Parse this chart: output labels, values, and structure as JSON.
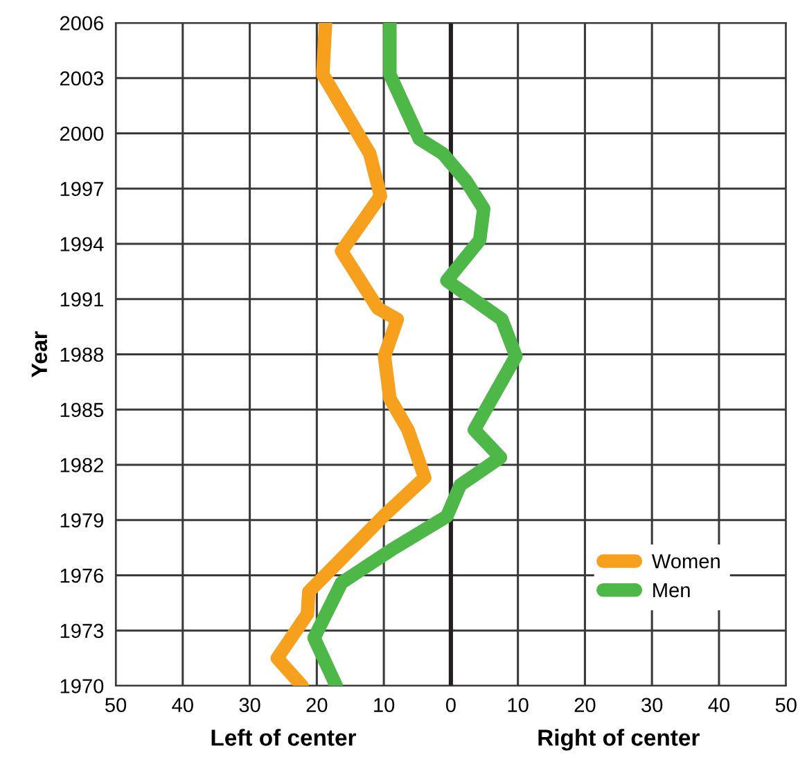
{
  "chart_data": {
    "type": "line",
    "ylabel": "Year",
    "annotations": [
      "Left of center",
      "Right of center"
    ],
    "xlim": [
      -50,
      50
    ],
    "xticks": [
      {
        "value": -50,
        "label": "50"
      },
      {
        "value": -40,
        "label": "40"
      },
      {
        "value": -30,
        "label": "30"
      },
      {
        "value": -20,
        "label": "20"
      },
      {
        "value": -10,
        "label": "10"
      },
      0,
      10,
      20,
      30,
      40,
      50
    ],
    "ylim": [
      1970,
      2006
    ],
    "yticks": [
      1970,
      1973,
      1976,
      1979,
      1982,
      1985,
      1988,
      1991,
      1994,
      1997,
      2000,
      2003,
      2006
    ],
    "grid": true,
    "legend": "bottom right",
    "marker": "none",
    "line_style": "solid",
    "ref_lines": [
      {
        "axis": "x",
        "value": 0,
        "label": null,
        "color": "#231f20"
      }
    ],
    "series": [
      {
        "name": "Women",
        "color": "#f7a01e",
        "x": [
          -22.2,
          -25.9,
          -21.4,
          -21.2,
          -13.6,
          -10.1,
          -3.9,
          -6.4,
          -9.1,
          -9.9,
          -8.0,
          -10.9,
          -16.3,
          -10.5,
          -12.1,
          -19.1,
          -18.7
        ],
        "values": [
          1970,
          1971.5,
          1973.9,
          1975.1,
          1977.9,
          1979.2,
          1981.3,
          1983.9,
          1985.6,
          1987.9,
          1989.9,
          1990.5,
          1993.6,
          1996.6,
          1998.9,
          2003.2,
          2006
        ]
      },
      {
        "name": "Men",
        "color": "#4db848",
        "x": [
          -17.1,
          -20.4,
          -16.3,
          -8.8,
          -0.6,
          1.4,
          7.4,
          3.5,
          9.7,
          7.6,
          -0.6,
          4.3,
          4.9,
          2.3,
          -1.2,
          -4.7,
          -9.1,
          -9.1
        ],
        "values": [
          1970,
          1972.6,
          1975.6,
          1977.4,
          1979.2,
          1980.9,
          1982.4,
          1983.9,
          1987.9,
          1989.9,
          1992.0,
          1994.2,
          1995.9,
          1997.4,
          1998.9,
          1999.7,
          2003.2,
          2006
        ]
      }
    ]
  }
}
